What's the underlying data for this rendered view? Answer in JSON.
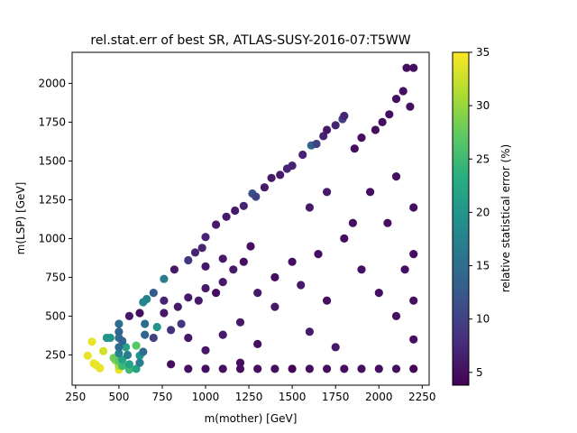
{
  "chart_data": {
    "type": "scatter",
    "title": "rel.stat.err of best SR, ATLAS-SUSY-2016-07:T5WW",
    "xlabel": "m(mother) [GeV]",
    "ylabel": "m(LSP) [GeV]",
    "xlim": [
      230,
      2290
    ],
    "ylim": [
      55,
      2200
    ],
    "xticks": [
      250,
      500,
      750,
      1000,
      1250,
      1500,
      1750,
      2000,
      2250
    ],
    "yticks": [
      250,
      500,
      750,
      1000,
      1250,
      1500,
      1750,
      2000
    ],
    "colorbar": {
      "label": "relative statistical error (%)",
      "range": [
        3.8,
        35
      ],
      "ticks": [
        5,
        10,
        15,
        20,
        25,
        30,
        35
      ],
      "colormap": "viridis"
    },
    "grid": false,
    "points": [
      [
        320,
        245,
        34
      ],
      [
        345,
        335,
        34
      ],
      [
        355,
        195,
        34
      ],
      [
        370,
        185,
        34
      ],
      [
        390,
        165,
        34
      ],
      [
        410,
        275,
        33
      ],
      [
        430,
        360,
        20
      ],
      [
        450,
        360,
        20
      ],
      [
        470,
        230,
        28
      ],
      [
        480,
        215,
        30
      ],
      [
        500,
        155,
        34
      ],
      [
        500,
        180,
        31
      ],
      [
        500,
        210,
        27
      ],
      [
        520,
        180,
        25
      ],
      [
        520,
        220,
        22
      ],
      [
        500,
        260,
        18
      ],
      [
        500,
        300,
        15
      ],
      [
        520,
        340,
        14
      ],
      [
        500,
        360,
        15
      ],
      [
        500,
        400,
        14
      ],
      [
        500,
        450,
        15
      ],
      [
        540,
        300,
        22
      ],
      [
        550,
        250,
        17
      ],
      [
        560,
        155,
        25
      ],
      [
        560,
        190,
        22
      ],
      [
        600,
        160,
        22
      ],
      [
        600,
        310,
        27
      ],
      [
        620,
        245,
        20
      ],
      [
        620,
        200,
        17
      ],
      [
        640,
        270,
        15
      ],
      [
        650,
        450,
        15
      ],
      [
        660,
        610,
        18
      ],
      [
        640,
        590,
        18
      ],
      [
        700,
        650,
        13
      ],
      [
        760,
        740,
        17
      ],
      [
        720,
        430,
        20
      ],
      [
        650,
        380,
        14
      ],
      [
        700,
        360,
        10
      ],
      [
        800,
        410,
        8
      ],
      [
        860,
        450,
        9
      ],
      [
        900,
        860,
        9
      ],
      [
        820,
        800,
        6
      ],
      [
        940,
        910,
        7
      ],
      [
        980,
        940,
        7
      ],
      [
        1000,
        1010,
        7
      ],
      [
        1060,
        1090,
        6
      ],
      [
        1120,
        1140,
        6
      ],
      [
        1170,
        1180,
        6
      ],
      [
        1220,
        1210,
        7
      ],
      [
        1270,
        1290,
        12
      ],
      [
        1290,
        1270,
        10
      ],
      [
        1340,
        1330,
        6
      ],
      [
        1380,
        1390,
        6
      ],
      [
        1430,
        1410,
        6
      ],
      [
        1470,
        1450,
        7
      ],
      [
        1500,
        1470,
        7
      ],
      [
        1560,
        1540,
        7
      ],
      [
        1610,
        1600,
        14
      ],
      [
        1640,
        1610,
        10
      ],
      [
        1680,
        1660,
        7
      ],
      [
        1700,
        1700,
        6
      ],
      [
        1750,
        1730,
        7
      ],
      [
        1790,
        1770,
        10
      ],
      [
        1800,
        1790,
        7
      ],
      [
        560,
        500,
        6
      ],
      [
        620,
        520,
        5
      ],
      [
        760,
        600,
        7
      ],
      [
        760,
        520,
        6
      ],
      [
        840,
        560,
        6
      ],
      [
        900,
        620,
        6
      ],
      [
        960,
        600,
        6
      ],
      [
        1000,
        680,
        6
      ],
      [
        1060,
        650,
        5
      ],
      [
        1100,
        720,
        6
      ],
      [
        1000,
        820,
        6
      ],
      [
        1100,
        870,
        6
      ],
      [
        1160,
        800,
        6
      ],
      [
        1220,
        850,
        5
      ],
      [
        1260,
        950,
        5
      ],
      [
        900,
        360,
        6
      ],
      [
        1000,
        280,
        6
      ],
      [
        1100,
        380,
        6
      ],
      [
        1200,
        200,
        5
      ],
      [
        1300,
        320,
        5
      ],
      [
        1200,
        460,
        6
      ],
      [
        1400,
        560,
        6
      ],
      [
        1300,
        650,
        6
      ],
      [
        1400,
        750,
        5
      ],
      [
        1500,
        850,
        5
      ],
      [
        800,
        190,
        5
      ],
      [
        900,
        160,
        5
      ],
      [
        1000,
        160,
        5
      ],
      [
        1100,
        160,
        5
      ],
      [
        1200,
        160,
        5
      ],
      [
        1300,
        160,
        5
      ],
      [
        1400,
        160,
        5
      ],
      [
        1500,
        160,
        4
      ],
      [
        1600,
        160,
        5
      ],
      [
        1700,
        160,
        5
      ],
      [
        1800,
        160,
        5
      ],
      [
        1900,
        160,
        5
      ],
      [
        2000,
        160,
        5
      ],
      [
        2100,
        160,
        5
      ],
      [
        2200,
        160,
        4
      ],
      [
        2160,
        2100,
        5
      ],
      [
        2200,
        2100,
        5
      ],
      [
        2140,
        1950,
        5
      ],
      [
        2180,
        1850,
        5
      ],
      [
        2100,
        1900,
        5
      ],
      [
        2060,
        1800,
        5
      ],
      [
        2020,
        1750,
        5
      ],
      [
        1980,
        1700,
        5
      ],
      [
        1900,
        1650,
        5
      ],
      [
        1860,
        1580,
        5
      ],
      [
        2200,
        1200,
        5
      ],
      [
        2200,
        900,
        5
      ],
      [
        2200,
        600,
        5
      ],
      [
        2200,
        350,
        5
      ],
      [
        2100,
        500,
        5
      ],
      [
        2000,
        650,
        5
      ],
      [
        1900,
        800,
        5
      ],
      [
        1850,
        1100,
        5
      ],
      [
        1950,
        1300,
        5
      ],
      [
        2100,
        1400,
        5
      ],
      [
        1700,
        1300,
        6
      ],
      [
        1600,
        1200,
        6
      ],
      [
        1650,
        900,
        5
      ],
      [
        1700,
        600,
        5
      ],
      [
        1600,
        400,
        6
      ],
      [
        1750,
        300,
        6
      ],
      [
        1550,
        700,
        6
      ],
      [
        1800,
        1000,
        5
      ],
      [
        2050,
        1100,
        5
      ],
      [
        2150,
        800,
        5
      ]
    ]
  }
}
